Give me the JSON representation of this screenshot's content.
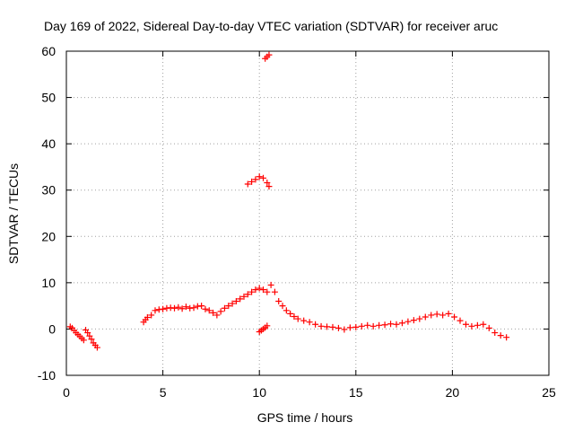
{
  "chart_data": {
    "type": "scatter",
    "title": "Day 169 of 2022, Sidereal Day-to-day VTEC variation (SDTVAR) for receiver aruc",
    "xlabel": "GPS time / hours",
    "ylabel": "SDTVAR / TECUs",
    "xlim": [
      0,
      25
    ],
    "ylim": [
      -10,
      60
    ],
    "xticks": [
      0,
      5,
      10,
      15,
      20,
      25
    ],
    "yticks": [
      -10,
      0,
      10,
      20,
      30,
      40,
      50,
      60
    ],
    "xtick_labels": [
      "0",
      "5",
      "10",
      "15",
      "20",
      "25"
    ],
    "ytick_labels": [
      "-10",
      "0",
      "10",
      "20",
      "30",
      "40",
      "50",
      "60"
    ],
    "grid": true,
    "marker": "+",
    "color": "#ff0000",
    "series": [
      {
        "name": "SDTVAR",
        "x": [
          0.2,
          0.3,
          0.4,
          0.5,
          0.6,
          0.7,
          0.8,
          0.9,
          1.0,
          1.1,
          1.2,
          1.3,
          1.4,
          1.5,
          1.6,
          4.0,
          4.1,
          4.2,
          4.4,
          4.6,
          4.8,
          5.0,
          5.2,
          5.4,
          5.6,
          5.8,
          6.0,
          6.2,
          6.4,
          6.6,
          6.8,
          7.0,
          7.2,
          7.4,
          7.6,
          7.8,
          8.0,
          8.2,
          8.4,
          8.6,
          8.8,
          9.0,
          9.2,
          9.4,
          9.6,
          9.8,
          10.0,
          10.2,
          10.4,
          10.6,
          10.8,
          11.0,
          11.2,
          11.4,
          11.6,
          11.8,
          12.0,
          12.3,
          12.6,
          12.9,
          13.2,
          13.5,
          13.8,
          14.1,
          14.4,
          14.7,
          15.0,
          15.3,
          15.6,
          15.9,
          16.2,
          16.5,
          16.8,
          17.1,
          17.4,
          17.7,
          18.0,
          18.3,
          18.6,
          18.9,
          19.2,
          19.5,
          19.8,
          20.1,
          20.4,
          20.7,
          21.0,
          21.3,
          21.6,
          21.9,
          22.2,
          22.5,
          22.8,
          9.4,
          9.6,
          9.8,
          10.0,
          10.2,
          10.4,
          10.5,
          10.0,
          10.1,
          10.2,
          10.3,
          10.4,
          10.3,
          10.4,
          10.5
        ],
        "y": [
          0.5,
          0.2,
          -0.3,
          -0.8,
          -1.2,
          -1.6,
          -2.0,
          -2.4,
          -0.2,
          -0.8,
          -1.5,
          -2.2,
          -3.0,
          -3.5,
          -4.0,
          1.5,
          2.0,
          2.5,
          3.0,
          4.0,
          4.2,
          4.3,
          4.5,
          4.6,
          4.5,
          4.7,
          4.4,
          4.8,
          4.5,
          4.6,
          4.9,
          5.0,
          4.3,
          4.0,
          3.5,
          3.0,
          3.8,
          4.5,
          5.0,
          5.5,
          6.0,
          6.5,
          7.0,
          7.5,
          8.0,
          8.5,
          8.8,
          8.5,
          8.0,
          9.5,
          8.0,
          6.0,
          5.0,
          4.0,
          3.3,
          2.7,
          2.2,
          1.8,
          1.5,
          1.0,
          0.6,
          0.5,
          0.4,
          0.2,
          -0.1,
          0.3,
          0.4,
          0.6,
          0.8,
          0.6,
          0.8,
          0.9,
          1.1,
          1.0,
          1.3,
          1.6,
          1.9,
          2.2,
          2.6,
          3.0,
          3.2,
          3.0,
          3.3,
          2.6,
          1.8,
          1.0,
          0.6,
          0.8,
          1.0,
          0.2,
          -0.8,
          -1.4,
          -1.8,
          31.3,
          31.8,
          32.3,
          32.9,
          32.6,
          31.6,
          30.8,
          -0.6,
          -0.3,
          0.0,
          0.3,
          0.7,
          58.4,
          58.8,
          59.2
        ]
      }
    ]
  }
}
